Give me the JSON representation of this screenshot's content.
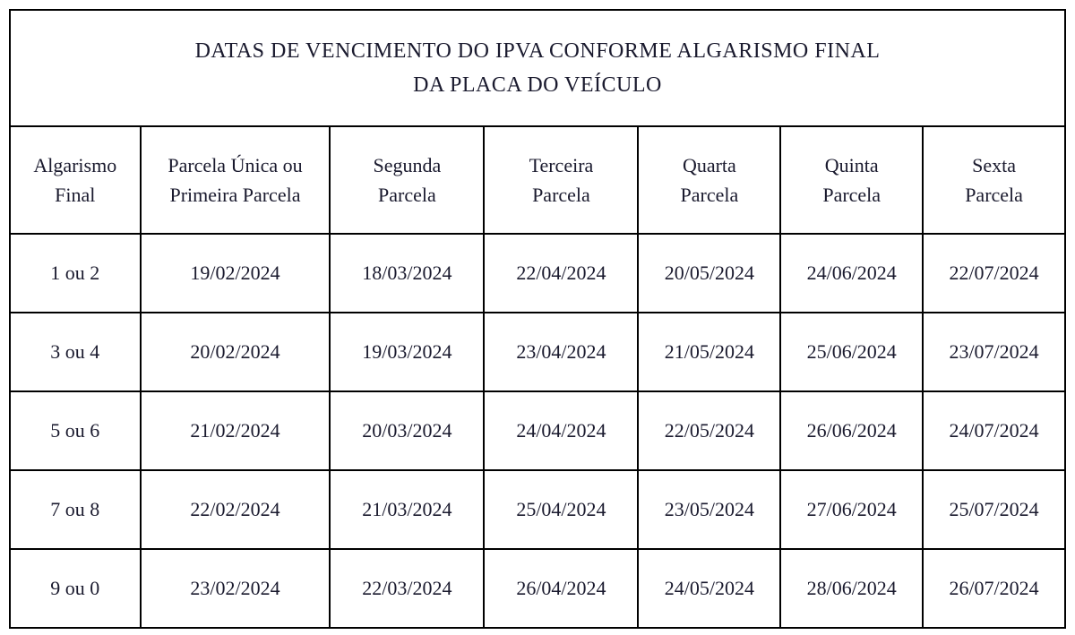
{
  "table": {
    "title_line1": "DATAS DE VENCIMENTO DO IPVA CONFORME ALGARISMO FINAL",
    "title_line2": "DA PLACA DO VEÍCULO",
    "columns": [
      "Algarismo Final",
      "Parcela Única ou Primeira Parcela",
      "Segunda Parcela",
      "Terceira Parcela",
      "Quarta Parcela",
      "Quinta Parcela",
      "Sexta Parcela"
    ],
    "rows": [
      [
        "1 ou 2",
        "19/02/2024",
        "18/03/2024",
        "22/04/2024",
        "20/05/2024",
        "24/06/2024",
        "22/07/2024"
      ],
      [
        "3 ou 4",
        "20/02/2024",
        "19/03/2024",
        "23/04/2024",
        "21/05/2024",
        "25/06/2024",
        "23/07/2024"
      ],
      [
        "5 ou 6",
        "21/02/2024",
        "20/03/2024",
        "24/04/2024",
        "22/05/2024",
        "26/06/2024",
        "24/07/2024"
      ],
      [
        "7 ou 8",
        "22/02/2024",
        "21/03/2024",
        "25/04/2024",
        "23/05/2024",
        "27/06/2024",
        "25/07/2024"
      ],
      [
        "9 ou 0",
        "23/02/2024",
        "22/03/2024",
        "26/04/2024",
        "24/05/2024",
        "28/06/2024",
        "26/07/2024"
      ]
    ],
    "styling": {
      "border_color": "#000000",
      "border_width": 2,
      "text_color": "#1a1a2e",
      "background_color": "#ffffff",
      "font_family": "Times New Roman",
      "title_fontsize": 24,
      "header_fontsize": 22,
      "cell_fontsize": 22,
      "column_widths_pct": [
        11,
        16,
        13,
        13,
        12,
        12,
        12
      ]
    }
  }
}
